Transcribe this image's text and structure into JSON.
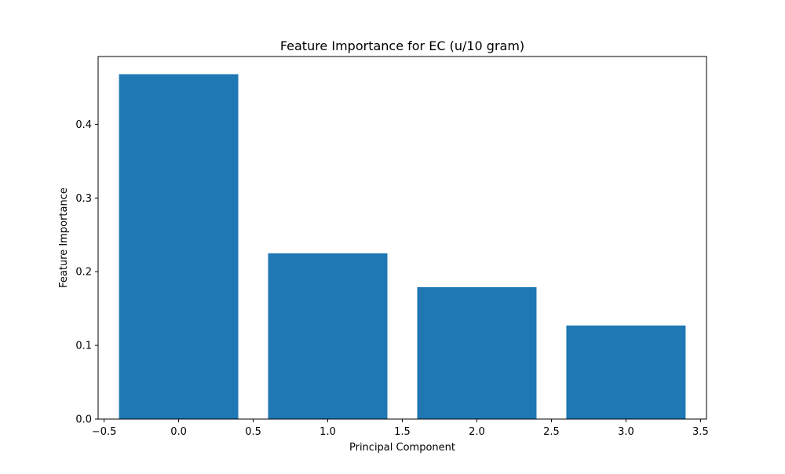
{
  "chart_data": {
    "type": "bar",
    "title": "Feature Importance for EC (u/10 gram)",
    "xlabel": "Principal Component",
    "ylabel": "Feature Importance",
    "x": [
      0,
      1,
      2,
      3
    ],
    "values": [
      0.468,
      0.225,
      0.179,
      0.127
    ],
    "bar_width": 0.8,
    "xlim": [
      -0.54,
      3.54
    ],
    "ylim": [
      0,
      0.492
    ],
    "xticks": [
      -0.5,
      0.0,
      0.5,
      1.0,
      1.5,
      2.0,
      2.5,
      3.0,
      3.5
    ],
    "xtick_labels": [
      "−0.5",
      "0.0",
      "0.5",
      "1.0",
      "1.5",
      "2.0",
      "2.5",
      "3.0",
      "3.5"
    ],
    "yticks": [
      0.0,
      0.1,
      0.2,
      0.3,
      0.4
    ],
    "ytick_labels": [
      "0.0",
      "0.1",
      "0.2",
      "0.3",
      "0.4"
    ],
    "grid": false,
    "legend": "none",
    "bar_color": "#1f77b4"
  }
}
